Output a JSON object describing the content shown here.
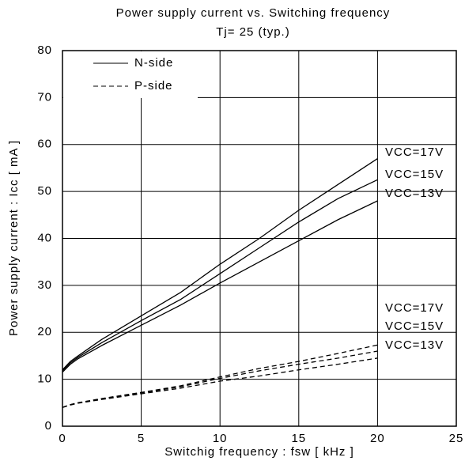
{
  "chart_data": {
    "type": "line",
    "title": "Power supply current vs. Switching frequency",
    "subtitle": "Tj= 25  (typ.)",
    "x_label": "Switchig frequency  : fsw [ kHz ]",
    "y_label": "Power supply current : Icc [ mA ]",
    "x": [
      0,
      0.5,
      1,
      2.5,
      5,
      7.5,
      10,
      12.5,
      15,
      17.5,
      20
    ],
    "series": [
      {
        "name": "VCC=17V",
        "style": "solid",
        "color": "#000000",
        "values": [
          12,
          13.8,
          15,
          18.5,
          23.5,
          28.5,
          34.5,
          40,
          46,
          51.5,
          57
        ]
      },
      {
        "name": "VCC=15V",
        "style": "solid",
        "color": "#000000",
        "values": [
          11.8,
          13.5,
          14.7,
          17.8,
          22.5,
          27,
          32.5,
          38,
          43.5,
          48.5,
          52.5
        ]
      },
      {
        "name": "VCC=13V",
        "style": "solid",
        "color": "#000000",
        "values": [
          11.5,
          13.2,
          14.4,
          17.2,
          21.5,
          25.8,
          30.5,
          35,
          39.5,
          44,
          48
        ]
      },
      {
        "name": "VCC=17V",
        "style": "dashed",
        "color": "#000000",
        "values": [
          4,
          4.6,
          5,
          5.9,
          7.2,
          8.6,
          10.5,
          12.3,
          13.8,
          15.5,
          17.3
        ]
      },
      {
        "name": "VCC=15V",
        "style": "dashed",
        "color": "#000000",
        "values": [
          4,
          4.6,
          5,
          5.8,
          7.1,
          8.4,
          10.2,
          11.8,
          13.2,
          14.5,
          16
        ]
      },
      {
        "name": "VCC=13V",
        "style": "dashed",
        "color": "#000000",
        "values": [
          4,
          4.5,
          4.9,
          5.7,
          6.9,
          8.1,
          9.6,
          10.7,
          12,
          13.2,
          14.5
        ]
      }
    ],
    "legend": [
      {
        "label": "N-side",
        "style": "solid"
      },
      {
        "label": "P-side",
        "style": "dashed"
      }
    ],
    "xlim": [
      0,
      25
    ],
    "xticks": [
      0,
      5,
      10,
      15,
      20,
      25
    ],
    "ylim": [
      0,
      80
    ],
    "yticks": [
      0,
      10,
      20,
      30,
      40,
      50,
      60,
      70,
      80
    ],
    "grid": true
  }
}
